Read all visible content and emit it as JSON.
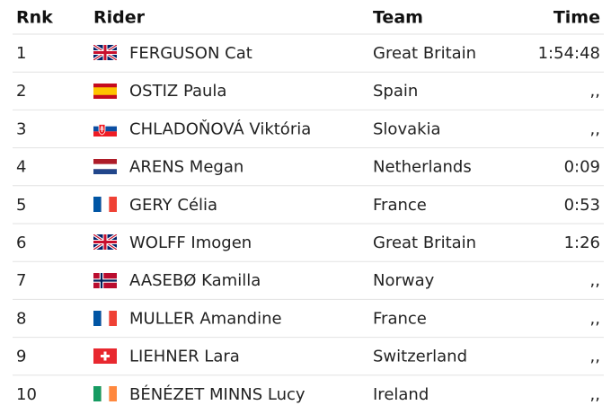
{
  "table": {
    "header": [
      "Rnk",
      "Rider",
      "Team",
      "Time"
    ],
    "rows": [
      [
        "1",
        "FERGUSON Cat",
        "Great Britain",
        "1:54:48"
      ],
      [
        "2",
        "OSTIZ Paula",
        "Spain",
        ",,"
      ],
      [
        "3",
        "CHLADOŇOVÁ Viktória",
        "Slovakia",
        ",,"
      ],
      [
        "4",
        "ARENS Megan",
        "Netherlands",
        "0:09"
      ],
      [
        "5",
        "GERY Célia",
        "France",
        "0:53"
      ],
      [
        "6",
        "WOLFF Imogen",
        "Great Britain",
        "1:26"
      ],
      [
        "7",
        "AASEBØ Kamilla",
        "Norway",
        ",,"
      ],
      [
        "8",
        "MULLER Amandine",
        "France",
        ",,"
      ],
      [
        "9",
        "LIEHNER Lara",
        "Switzerland",
        ",,"
      ],
      [
        "10",
        "BÉNÉZET MINNS Lucy",
        "Ireland",
        ",,"
      ]
    ]
  }
}
